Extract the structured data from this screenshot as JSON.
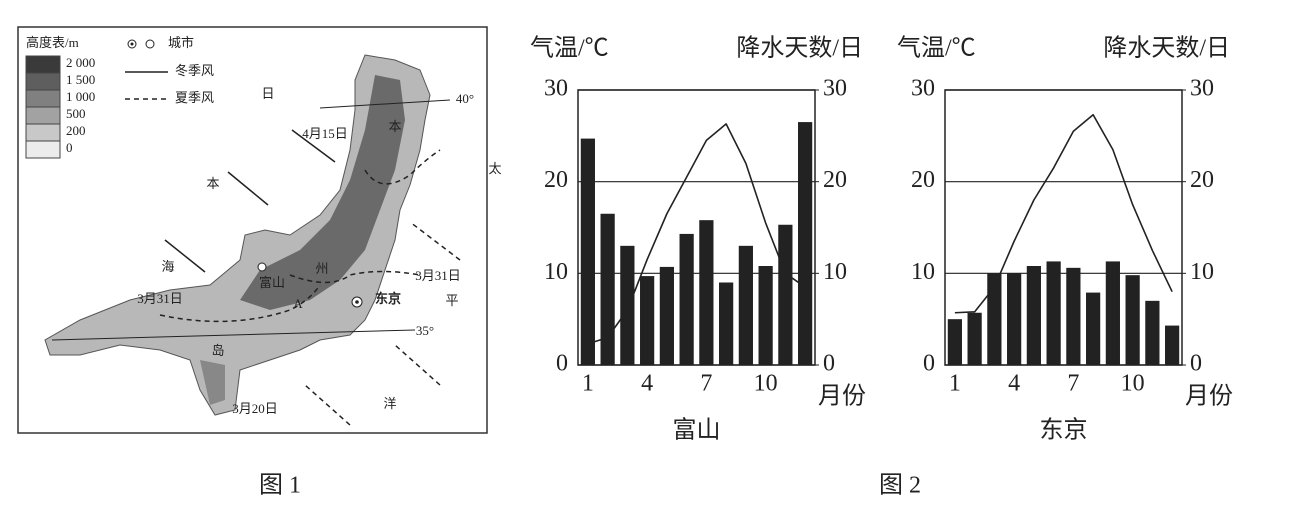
{
  "figure1": {
    "legend": {
      "title": "高度表/m",
      "levels": [
        "2 000",
        "1 500",
        "1 000",
        "500",
        "200",
        "0"
      ],
      "city": "城市",
      "winter_wind": "冬季风",
      "summer_wind": "夏季风"
    },
    "labels": [
      "日",
      "本",
      "海",
      "太",
      "平",
      "洋",
      "本",
      "州",
      "岛",
      "4月15日",
      "3月31日",
      "3月31日",
      "3月20日",
      "40°",
      "35°",
      "A",
      "富山",
      "东京"
    ],
    "caption": "图 1"
  },
  "chart_data": [
    {
      "type": "combo",
      "title": "富山",
      "ylabel": "气温/℃",
      "y2label": "降水天数/日",
      "xlabel": "月份",
      "categories": [
        1,
        null,
        null,
        4,
        null,
        null,
        7,
        null,
        null,
        10,
        null,
        null
      ],
      "ylim": [
        0,
        30
      ],
      "yticks": [
        0,
        10,
        20,
        30
      ],
      "y2lim": [
        0,
        30
      ],
      "y2ticks": [
        0,
        10,
        20,
        30
      ],
      "grid": true,
      "series": [
        {
          "type": "bar",
          "axis": "y2",
          "color": "#222222",
          "values": [
            24.7,
            16.5,
            13,
            9.7,
            10.7,
            14.3,
            15.8,
            9,
            13,
            10.8,
            15.3,
            26.5
          ]
        },
        {
          "type": "line",
          "color": "#222222",
          "values": [
            2.3,
            3,
            6,
            11.5,
            16.5,
            20.5,
            24.5,
            26.3,
            22,
            15.5,
            10,
            8.5
          ]
        }
      ]
    },
    {
      "type": "combo",
      "title": "东京",
      "ylabel": "气温/℃",
      "y2label": "降水天数/日",
      "xlabel": "月份",
      "categories": [
        1,
        null,
        null,
        4,
        null,
        null,
        7,
        null,
        null,
        10,
        null,
        null
      ],
      "ylim": [
        0,
        30
      ],
      "yticks": [
        0,
        10,
        20,
        30
      ],
      "y2lim": [
        0,
        30
      ],
      "y2ticks": [
        0,
        10,
        20,
        30
      ],
      "grid": true,
      "series": [
        {
          "type": "bar",
          "axis": "y2",
          "color": "#222222",
          "values": [
            5,
            5.7,
            10,
            10,
            10.8,
            11.3,
            10.6,
            7.9,
            11.3,
            9.8,
            7,
            4.3
          ]
        },
        {
          "type": "line",
          "color": "#222222",
          "values": [
            5.7,
            5.8,
            8.5,
            13.5,
            18,
            21.5,
            25.5,
            27.3,
            23.5,
            17.5,
            12.5,
            8
          ]
        }
      ]
    }
  ],
  "figure2_caption": "图 2"
}
